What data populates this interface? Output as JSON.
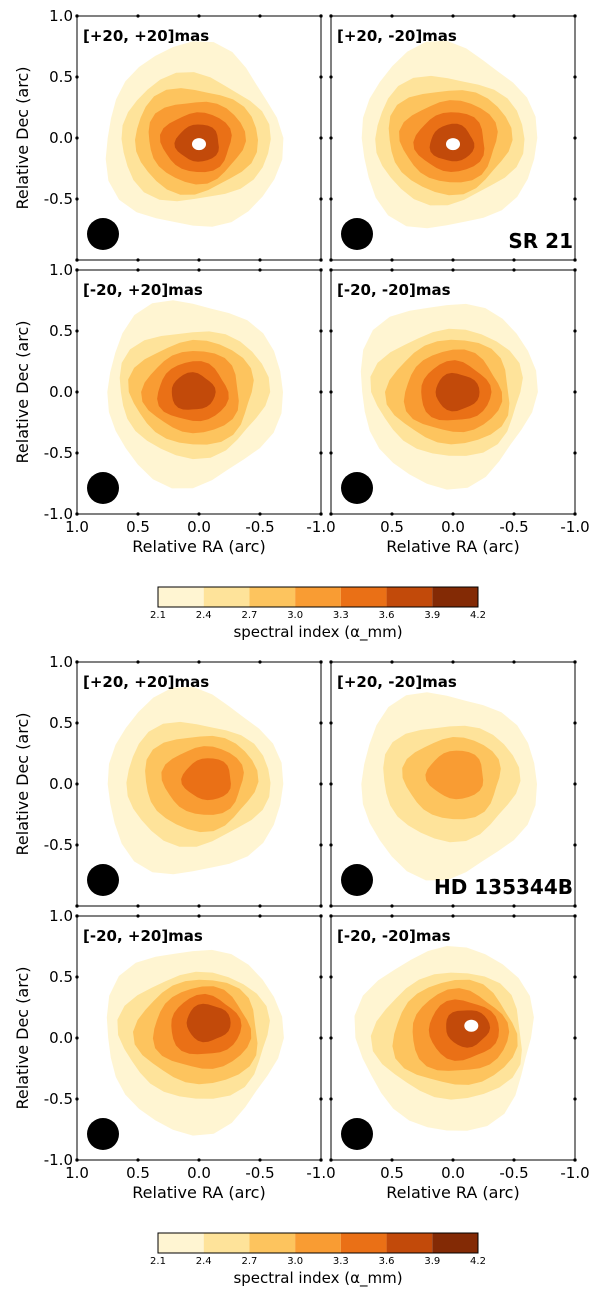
{
  "chart_data": [
    {
      "type": "heatmap",
      "target": "SR 21",
      "ylabel": "Relative Dec (arc)",
      "xlabel": "Relative RA (arc)",
      "xlim": [
        1.0,
        -1.0
      ],
      "ylim": [
        -1.0,
        1.0
      ],
      "xticks": [
        "1.0",
        "0.5",
        "0.0",
        "-0.5",
        "-1.0"
      ],
      "yticks": [
        "1.0",
        "0.5",
        "0.0",
        "-0.5",
        "-1.0"
      ],
      "panels": [
        {
          "label": "[+20, +20]mas",
          "peak_ra": 0.0,
          "peak_dec": -0.05,
          "peak_level": 3.9,
          "center_hole": true
        },
        {
          "label": "[+20, -20]mas",
          "peak_ra": 0.0,
          "peak_dec": -0.05,
          "peak_level": 3.9,
          "center_hole": true
        },
        {
          "label": "[-20, +20]mas",
          "peak_ra": 0.05,
          "peak_dec": 0.0,
          "peak_level": 3.9,
          "center_hole": false
        },
        {
          "label": "[-20, -20]mas",
          "peak_ra": -0.05,
          "peak_dec": 0.0,
          "peak_level": 3.9,
          "center_hole": false
        }
      ],
      "colorbar": {
        "label": "spectral index (α_mm)",
        "ticks": [
          "2.1",
          "2.4",
          "2.7",
          "3.0",
          "3.3",
          "3.6",
          "3.9",
          "4.2"
        ],
        "colors": [
          "#fff5d2",
          "#fee39a",
          "#fdc45e",
          "#f99c33",
          "#ea7016",
          "#c24a0a",
          "#832a05"
        ]
      }
    },
    {
      "type": "heatmap",
      "target": "HD 135344B",
      "ylabel": "Relative Dec (arc)",
      "xlabel": "Relative RA (arc)",
      "xlim": [
        1.0,
        -1.0
      ],
      "ylim": [
        -1.0,
        1.0
      ],
      "xticks": [
        "1.0",
        "0.5",
        "0.0",
        "-0.5",
        "-1.0"
      ],
      "yticks": [
        "1.0",
        "0.5",
        "0.0",
        "-0.5",
        "-1.0"
      ],
      "panels": [
        {
          "label": "[+20, +20]mas",
          "peak_ra": -0.1,
          "peak_dec": 0.05,
          "peak_level": 3.6,
          "center_hole": false
        },
        {
          "label": "[+20, -20]mas",
          "peak_ra": -0.05,
          "peak_dec": 0.1,
          "peak_level": 3.3,
          "center_hole": false
        },
        {
          "label": "[-20, +20]mas",
          "peak_ra": -0.1,
          "peak_dec": 0.15,
          "peak_level": 3.9,
          "center_hole": false
        },
        {
          "label": "[-20, -20]mas",
          "peak_ra": -0.15,
          "peak_dec": 0.1,
          "peak_level": 3.9,
          "center_hole": true
        }
      ],
      "colorbar": {
        "label": "spectral index (α_mm)",
        "ticks": [
          "2.1",
          "2.4",
          "2.7",
          "3.0",
          "3.3",
          "3.6",
          "3.9",
          "4.2"
        ],
        "colors": [
          "#fff5d2",
          "#fee39a",
          "#fdc45e",
          "#f99c33",
          "#ea7016",
          "#c24a0a",
          "#832a05"
        ]
      }
    }
  ]
}
